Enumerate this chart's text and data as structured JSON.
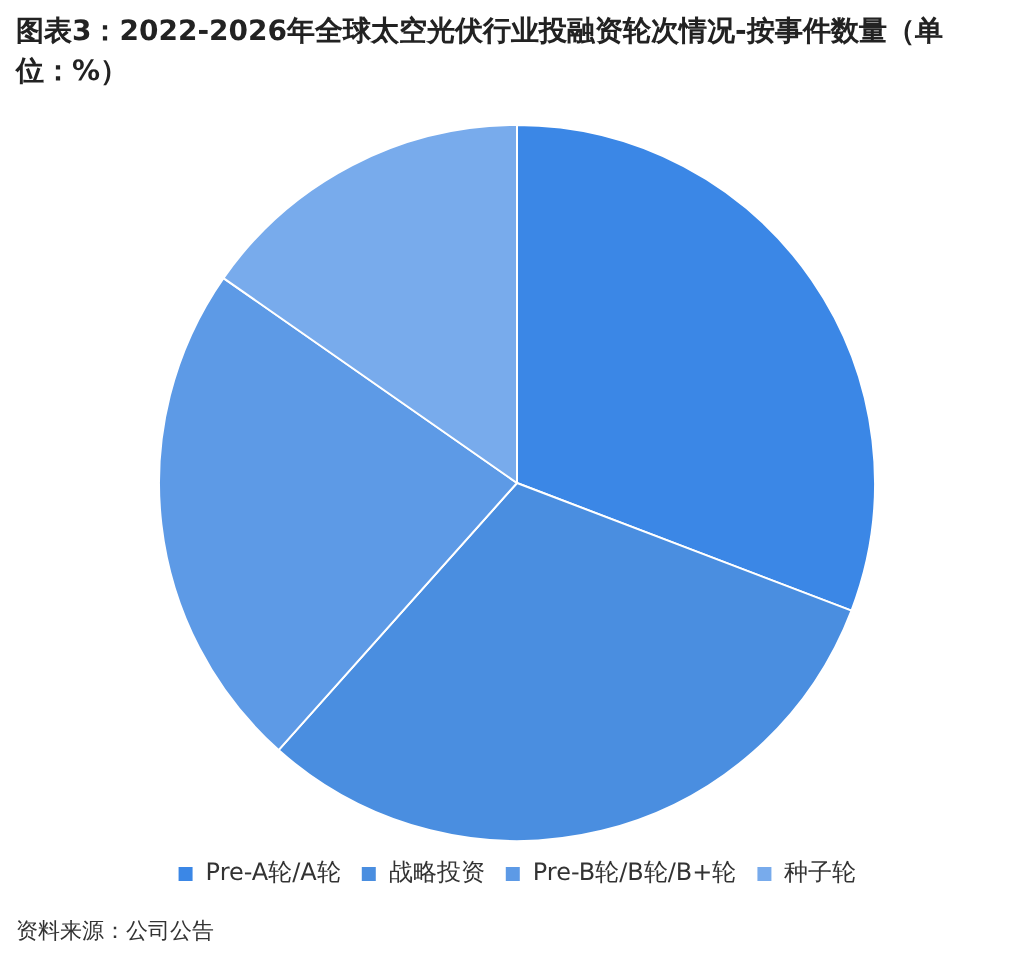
{
  "chart_data": {
    "type": "pie",
    "title": "图表3：2022-2026年全球太空光伏行业投融资轮次情况-按事件数量（单位：%）",
    "categories": [
      "Pre-A轮/A轮",
      "战略投资",
      "Pre-B轮/B轮/B+轮",
      "种子轮"
    ],
    "values": [
      30.8,
      30.8,
      23.1,
      15.3
    ],
    "colors": [
      "#3b87e6",
      "#4a8ee0",
      "#5d9ae6",
      "#78abec"
    ],
    "legend": "bottom",
    "annotations": [
      "资料来源：公司公告"
    ]
  }
}
